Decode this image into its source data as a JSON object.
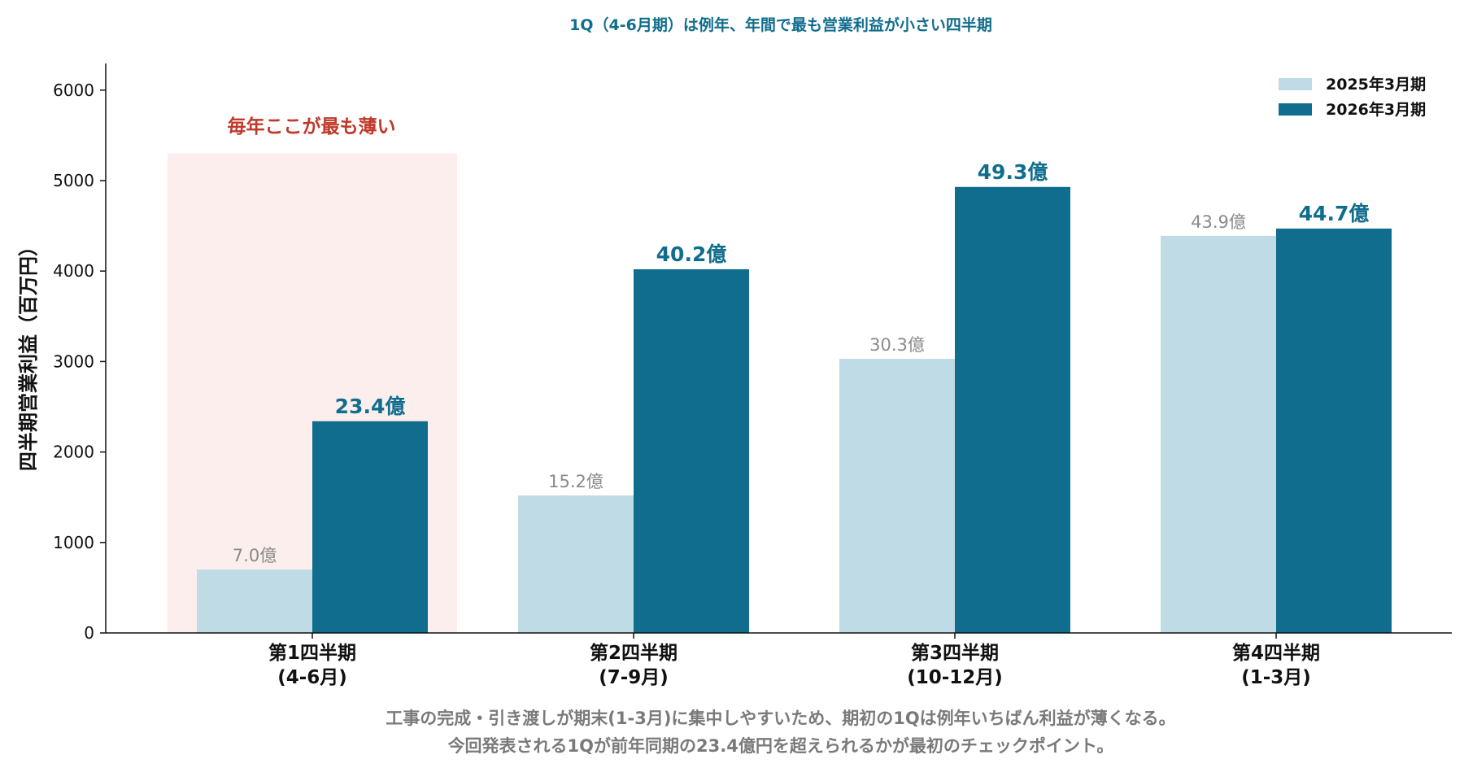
{
  "colors": {
    "series_a": "#bfdbe5",
    "series_b": "#116d8d",
    "title": "#116d8d",
    "annotation": "#c0392b",
    "highlight": "#fbeeed",
    "label_a": "#8a8a8a",
    "label_b": "#116d8d",
    "footer": "#7a7a7a",
    "axis": "#111111"
  },
  "chart_data": {
    "type": "bar",
    "title": "1Q（4-6月期）は例年、年間で最も営業利益が小さい四半期",
    "ylabel": "四半期営業利益（百万円）",
    "xlabel": "",
    "ylim": [
      0,
      6300
    ],
    "yticks": [
      "0",
      "1000",
      "2000",
      "3000",
      "4000",
      "5000",
      "6000"
    ],
    "ytick_values": [
      0,
      1000,
      2000,
      3000,
      4000,
      5000,
      6000
    ],
    "categories": [
      [
        "第1四半期",
        "(4-6月)"
      ],
      [
        "第2四半期",
        "(7-9月)"
      ],
      [
        "第3四半期",
        "(10-12月)"
      ],
      [
        "第4四半期",
        "(1-3月)"
      ]
    ],
    "series": [
      {
        "name": "2025年3月期",
        "values": [
          700,
          1520,
          3030,
          4390
        ],
        "labels": [
          "7.0億",
          "15.2億",
          "30.3億",
          "43.9億"
        ]
      },
      {
        "name": "2026年3月期",
        "values": [
          2340,
          4020,
          4930,
          4470
        ],
        "labels": [
          "23.4億",
          "40.2億",
          "49.3億",
          "44.7億"
        ]
      }
    ],
    "highlight": {
      "category_index": 0,
      "top_value": 5300,
      "label": "毎年ここが最も薄い"
    },
    "legend_position": "top-right",
    "grid": false
  },
  "footer": {
    "line1": "工事の完成・引き渡しが期末(1-3月)に集中しやすいため、期初の1Qは例年いちばん利益が薄くなる。",
    "line2": "今回発表される1Qが前年同期の23.4億円を超えられるかが最初のチェックポイント。"
  }
}
